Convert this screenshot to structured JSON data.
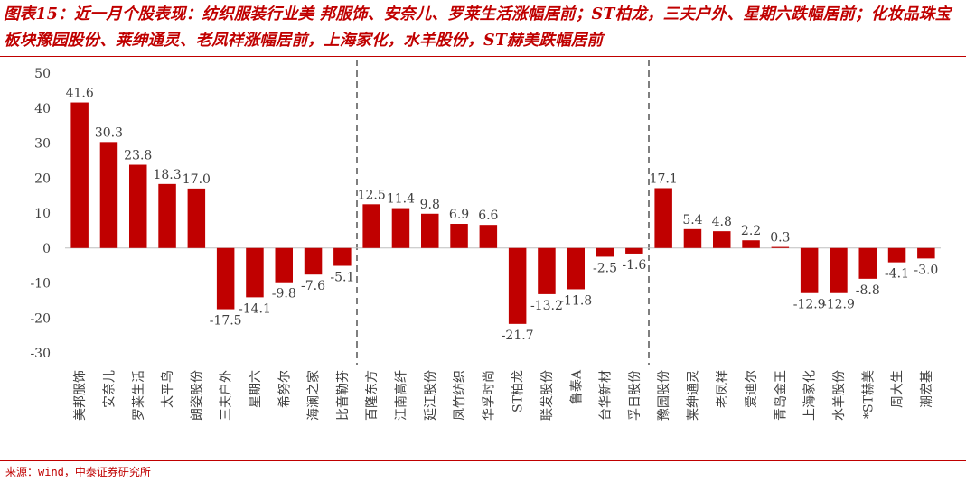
{
  "title": "图表15：近一月个股表现：纺织服装行业美 邦服饰、安奈儿、罗莱生活涨幅居前；ST柏龙，三夫户外、星期六跌幅居前；化妆品珠宝板块豫园股份、莱绅通灵、老凤祥涨幅居前，上海家化，水羊股份，ST赫美跌幅居前",
  "source": "来源：wind，中泰证券研究所",
  "colors": {
    "bar": "#c00000",
    "accent": "#c00000",
    "text": "#404040",
    "axis": "#bfbfbf",
    "divider": "#7f7f7f"
  },
  "chart_data": {
    "type": "bar",
    "categories": [
      "美邦服饰",
      "安奈儿",
      "罗莱生活",
      "太平鸟",
      "朗姿股份",
      "三夫户外",
      "星期六",
      "希努尔",
      "海澜之家",
      "比音勒芬",
      "百隆东方",
      "江南高纤",
      "延江股份",
      "凤竹纺织",
      "华孚时尚",
      "ST柏龙",
      "联发股份",
      "鲁泰A",
      "台华新材",
      "孚日股份",
      "豫园股份",
      "莱绅通灵",
      "老凤祥",
      "爱迪尔",
      "青岛金王",
      "上海家化",
      "水羊股份",
      "*ST赫美",
      "周大生",
      "潮宏基"
    ],
    "values": [
      41.6,
      30.3,
      23.8,
      18.3,
      17.0,
      -17.5,
      -14.1,
      -9.8,
      -7.6,
      -5.1,
      12.5,
      11.4,
      9.8,
      6.9,
      6.6,
      -21.7,
      -13.2,
      -11.8,
      -2.5,
      -1.6,
      17.1,
      5.4,
      4.8,
      2.2,
      0.3,
      -12.9,
      -12.9,
      -8.8,
      -4.1,
      -3.0
    ],
    "value_labels": [
      "41.6",
      "30.3",
      "23.8",
      "18.3",
      "17.0",
      "-17.5",
      "-14.1",
      "-9.8",
      "-7.6",
      "-5.1",
      "12.5",
      "11.4",
      "9.8",
      "6.9",
      "6.6",
      "-21.7",
      "-13.2",
      "-11.8",
      "-2.5",
      "-1.6",
      "17.1",
      "5.4",
      "4.8",
      "2.2",
      "0.3",
      "-12.9",
      "-12.9",
      "-8.8",
      "-4.1",
      "-3.0"
    ],
    "yticks": [
      50,
      40,
      30,
      20,
      10,
      0,
      -10,
      -20,
      -30
    ],
    "ytick_labels": [
      "50",
      "40",
      "30",
      "20",
      "10",
      "0",
      "-10",
      "-20",
      "-30"
    ],
    "ylim": [
      -30,
      50
    ],
    "group_dividers_after_index": [
      9,
      19
    ],
    "grid": false,
    "legend": "none",
    "xlabel": "",
    "ylabel": ""
  }
}
